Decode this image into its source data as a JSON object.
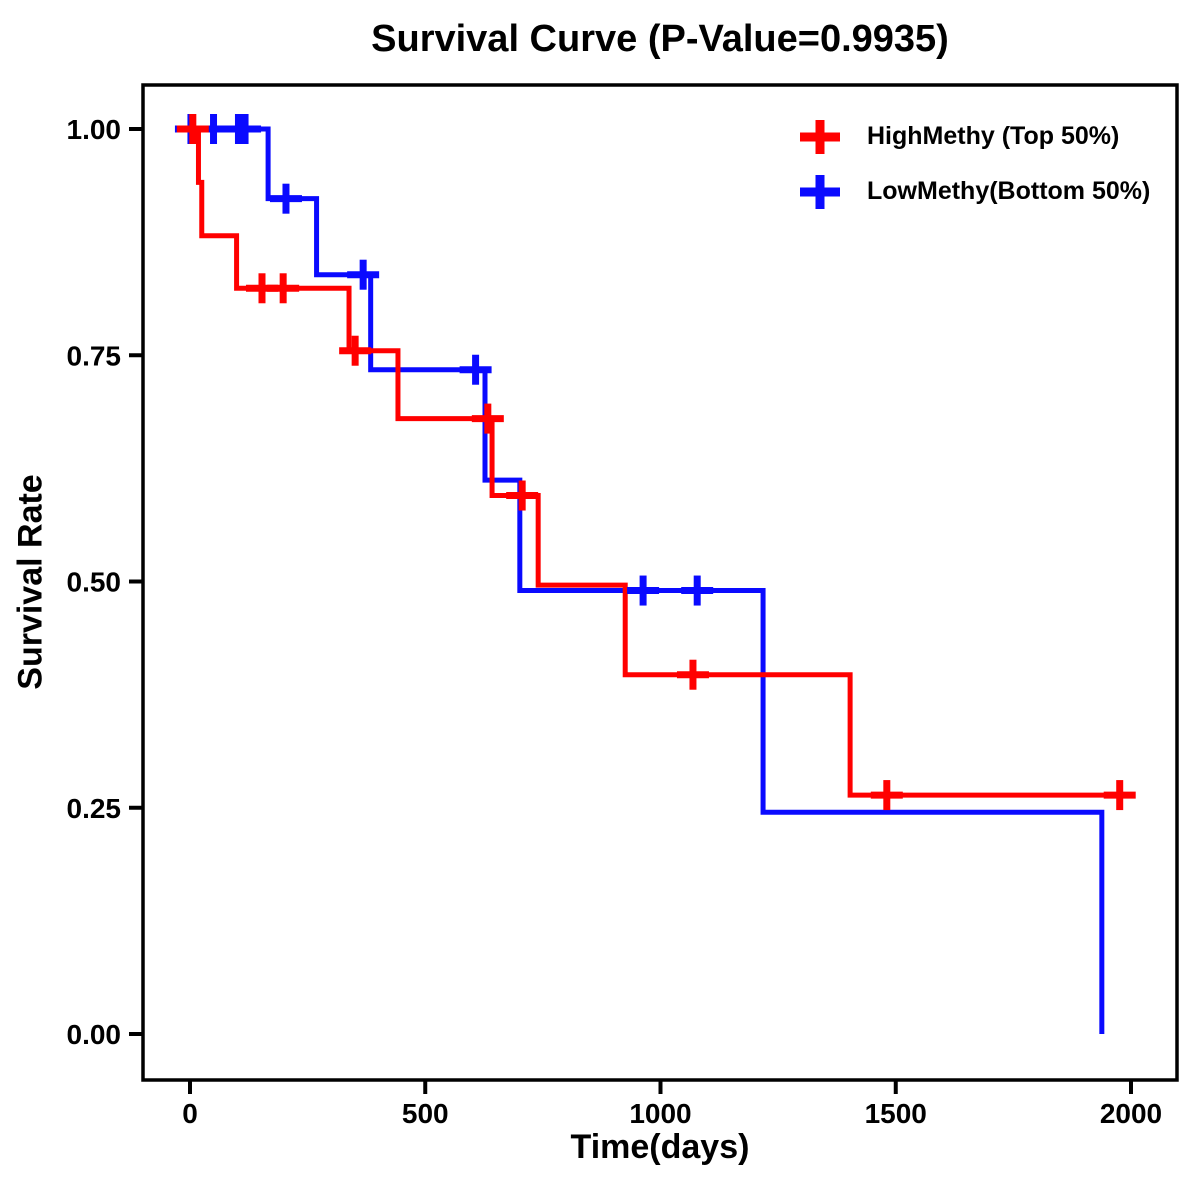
{
  "title": "Survival Curve (P-Value=0.9935)",
  "x_axis": {
    "label": "Time(days)",
    "ticks": [
      "0",
      "500",
      "1000",
      "1500",
      "2000"
    ],
    "tick_values": [
      0,
      500,
      1000,
      1500,
      2000
    ],
    "range": [
      0,
      2000
    ]
  },
  "y_axis": {
    "label": "Survival Rate",
    "ticks": [
      "0.00",
      "0.25",
      "0.50",
      "0.75",
      "1.00"
    ],
    "tick_values": [
      0,
      0.25,
      0.5,
      0.75,
      1.0
    ],
    "range": [
      0,
      1
    ]
  },
  "legend": [
    {
      "label": "HighMethy (Top 50%)",
      "color": "#ff0000"
    },
    {
      "label": "LowMethy(Bottom 50%)",
      "color": "#0a0aff"
    }
  ],
  "colors": {
    "high_methy": "#ff0000",
    "low_methy": "#0a0aff",
    "axis": "#000000",
    "background": "#ffffff"
  },
  "chart_data": {
    "type": "line",
    "subtype": "kaplan-meier-step-curves",
    "title": "Survival Curve (P-Value=0.9935)",
    "p_value": "0.9935",
    "xlabel": "Time(days)",
    "ylabel": "Survival Rate",
    "xlim": [
      0,
      2000
    ],
    "ylim": [
      0.0,
      1.0
    ],
    "grid": false,
    "legend_position": "upper right",
    "series": [
      {
        "id": "highmethy",
        "name": "HighMethy (Top 50%)",
        "color": "#ff0000",
        "steps": [
          [
            0,
            1.0
          ],
          [
            18,
            0.941
          ],
          [
            25,
            0.882
          ],
          [
            99,
            0.824
          ],
          [
            338,
            0.755
          ],
          [
            442,
            0.68
          ],
          [
            642,
            0.595
          ],
          [
            740,
            0.496
          ],
          [
            925,
            0.397
          ],
          [
            1403,
            0.264
          ]
        ],
        "end_time": 1976,
        "censors": [
          [
            6,
            1.0
          ],
          [
            153,
            0.824
          ],
          [
            198,
            0.824
          ],
          [
            351,
            0.755
          ],
          [
            633,
            0.68
          ],
          [
            706,
            0.595
          ],
          [
            1069,
            0.397
          ],
          [
            1481,
            0.264
          ],
          [
            1976,
            0.264
          ]
        ]
      },
      {
        "id": "lowmethy",
        "name": "LowMethy(Bottom 50%)",
        "color": "#0a0aff",
        "steps": [
          [
            0,
            1.0
          ],
          [
            166,
            0.923
          ],
          [
            269,
            0.839
          ],
          [
            384,
            0.734
          ],
          [
            627,
            0.612
          ],
          [
            701,
            0.49
          ],
          [
            1218,
            0.245
          ],
          [
            1938,
            0.0
          ]
        ],
        "end_time": 1938,
        "censors": [
          [
            2,
            1.0
          ],
          [
            50,
            1.0
          ],
          [
            103,
            1.0
          ],
          [
            117,
            1.0
          ],
          [
            204,
            0.923
          ],
          [
            368,
            0.839
          ],
          [
            607,
            0.734
          ],
          [
            963,
            0.49
          ],
          [
            1078,
            0.49
          ]
        ]
      }
    ]
  }
}
